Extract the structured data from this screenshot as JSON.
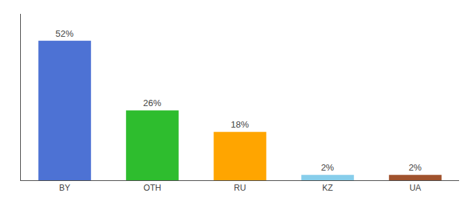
{
  "chart_data": {
    "type": "bar",
    "categories": [
      "BY",
      "OTH",
      "RU",
      "KZ",
      "UA"
    ],
    "values": [
      52,
      26,
      18,
      2,
      2
    ],
    "value_labels": [
      "52%",
      "26%",
      "18%",
      "2%",
      "2%"
    ],
    "colors": [
      "#4d72d4",
      "#2ebd2e",
      "#ffa500",
      "#87ceeb",
      "#a0522d"
    ],
    "ylim": [
      0,
      62
    ],
    "data_labels": true,
    "tick_labels": "x",
    "grid": false
  }
}
